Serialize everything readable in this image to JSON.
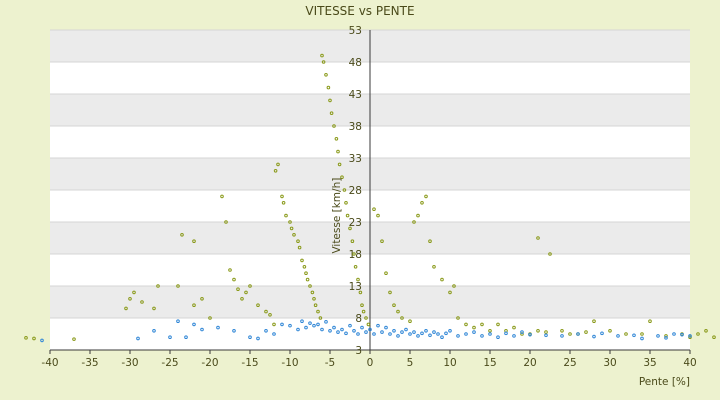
{
  "chart_data": {
    "type": "scatter",
    "title": "VITESSE vs PENTE",
    "xlabel": "Pente [%]",
    "ylabel": "Vitesse [km/h]",
    "xlim": [
      -40,
      40
    ],
    "ylim": [
      3,
      53
    ],
    "x_ticks": [
      "-40",
      "-35",
      "-30",
      "-25",
      "-20",
      "-15",
      "-10",
      "-5",
      "0",
      "5",
      "10",
      "15",
      "20",
      "25",
      "30",
      "35",
      "40"
    ],
    "y_ticks": [
      "3",
      "8",
      "13",
      "18",
      "23",
      "28",
      "33",
      "38",
      "43",
      "48",
      "53"
    ],
    "grid": true,
    "banded_background": true,
    "legend": "none",
    "colors": {
      "series_a": "#8a9a1a",
      "series_b": "#2f86d6",
      "axis": "#3a3a3a",
      "band": "#ebebeb"
    },
    "series": [
      {
        "color": "#8a9a1a",
        "points": [
          [
            -43,
            4.9
          ],
          [
            -42,
            4.8
          ],
          [
            -37,
            4.7
          ],
          [
            -30.5,
            9.5
          ],
          [
            -30,
            11
          ],
          [
            -29.5,
            12
          ],
          [
            -28.5,
            10.5
          ],
          [
            -27,
            9.5
          ],
          [
            -26.5,
            13
          ],
          [
            -24,
            13
          ],
          [
            -23.5,
            21
          ],
          [
            -22,
            20
          ],
          [
            -22,
            10
          ],
          [
            -21,
            11
          ],
          [
            -20,
            8
          ],
          [
            -18.5,
            27
          ],
          [
            -18,
            23
          ],
          [
            -17.5,
            15.5
          ],
          [
            -17,
            14
          ],
          [
            -16.5,
            12.5
          ],
          [
            -16,
            11
          ],
          [
            -15.5,
            12
          ],
          [
            -15,
            13
          ],
          [
            -14,
            10
          ],
          [
            -13,
            9
          ],
          [
            -12.5,
            8.5
          ],
          [
            -12,
            7
          ],
          [
            -11.8,
            31
          ],
          [
            -11.5,
            32
          ],
          [
            -11,
            27
          ],
          [
            -10.8,
            26
          ],
          [
            -10.5,
            24
          ],
          [
            -10,
            23
          ],
          [
            -9.8,
            22
          ],
          [
            -9.5,
            21
          ],
          [
            -9,
            20
          ],
          [
            -8.8,
            19
          ],
          [
            -8.5,
            17
          ],
          [
            -8.2,
            16
          ],
          [
            -8,
            15
          ],
          [
            -7.8,
            14
          ],
          [
            -7.5,
            13
          ],
          [
            -7.2,
            12
          ],
          [
            -7,
            11
          ],
          [
            -6.8,
            10
          ],
          [
            -6.5,
            9
          ],
          [
            -6.2,
            8
          ],
          [
            -6,
            49
          ],
          [
            -5.8,
            48
          ],
          [
            -5.5,
            46
          ],
          [
            -5.2,
            44
          ],
          [
            -5,
            42
          ],
          [
            -4.8,
            40
          ],
          [
            -4.5,
            38
          ],
          [
            -4.2,
            36
          ],
          [
            -4,
            34
          ],
          [
            -3.8,
            32
          ],
          [
            -3.5,
            30
          ],
          [
            -3.2,
            28
          ],
          [
            -3,
            26
          ],
          [
            -2.8,
            24
          ],
          [
            -2.5,
            22
          ],
          [
            -2.2,
            20
          ],
          [
            -2,
            18
          ],
          [
            -1.8,
            16
          ],
          [
            -1.5,
            14
          ],
          [
            -1.2,
            12
          ],
          [
            -1,
            10
          ],
          [
            -0.8,
            9
          ],
          [
            -0.5,
            8
          ],
          [
            -0.2,
            7
          ],
          [
            0.5,
            25
          ],
          [
            1,
            24
          ],
          [
            1.5,
            20
          ],
          [
            2,
            15
          ],
          [
            2.5,
            12
          ],
          [
            3,
            10
          ],
          [
            3.5,
            9
          ],
          [
            4,
            8
          ],
          [
            5,
            7.5
          ],
          [
            5.5,
            23
          ],
          [
            6,
            24
          ],
          [
            6.5,
            26
          ],
          [
            7,
            27
          ],
          [
            7.5,
            20
          ],
          [
            8,
            16
          ],
          [
            9,
            14
          ],
          [
            10,
            12
          ],
          [
            10.5,
            13
          ],
          [
            11,
            8
          ],
          [
            12,
            7
          ],
          [
            13,
            6.5
          ],
          [
            14,
            7
          ],
          [
            15,
            6
          ],
          [
            16,
            7
          ],
          [
            17,
            6
          ],
          [
            18,
            6.5
          ],
          [
            19,
            5.5
          ],
          [
            20,
            5.5
          ],
          [
            21,
            6
          ],
          [
            22,
            5.8
          ],
          [
            22.5,
            18
          ],
          [
            21,
            20.5
          ],
          [
            24,
            6
          ],
          [
            25,
            5.5
          ],
          [
            26,
            5.5
          ],
          [
            27,
            5.8
          ],
          [
            28,
            7.5
          ],
          [
            30,
            6
          ],
          [
            32,
            5.5
          ],
          [
            34,
            5.5
          ],
          [
            35,
            7.5
          ],
          [
            37,
            5.2
          ],
          [
            39,
            5.5
          ],
          [
            40,
            5
          ],
          [
            41,
            5.5
          ],
          [
            42,
            6
          ],
          [
            43,
            5
          ]
        ]
      },
      {
        "color": "#2f86d6",
        "points": [
          [
            -41,
            4.5
          ],
          [
            -29,
            4.8
          ],
          [
            -27,
            6
          ],
          [
            -25,
            5
          ],
          [
            -24,
            7.5
          ],
          [
            -23,
            5
          ],
          [
            -22,
            7
          ],
          [
            -21,
            6.2
          ],
          [
            -19,
            6.5
          ],
          [
            -17,
            6
          ],
          [
            -15,
            5
          ],
          [
            -14,
            4.8
          ],
          [
            -13,
            6
          ],
          [
            -12,
            5.5
          ],
          [
            -11,
            7
          ],
          [
            -10,
            6.8
          ],
          [
            -9,
            6.2
          ],
          [
            -8.5,
            7.5
          ],
          [
            -8,
            6.5
          ],
          [
            -7.5,
            7.2
          ],
          [
            -7,
            6.8
          ],
          [
            -6.5,
            7
          ],
          [
            -6,
            6.2
          ],
          [
            -5.5,
            7.4
          ],
          [
            -5,
            6
          ],
          [
            -4.5,
            6.5
          ],
          [
            -4,
            5.8
          ],
          [
            -3.5,
            6.2
          ],
          [
            -3,
            5.6
          ],
          [
            -2.5,
            6.8
          ],
          [
            -2,
            6
          ],
          [
            -1.5,
            5.5
          ],
          [
            -1,
            6.5
          ],
          [
            -0.5,
            5.8
          ],
          [
            0,
            6.2
          ],
          [
            0.5,
            5.5
          ],
          [
            1,
            6.8
          ],
          [
            1.5,
            5.8
          ],
          [
            2,
            6.5
          ],
          [
            2.5,
            5.5
          ],
          [
            3,
            6
          ],
          [
            3.5,
            5.2
          ],
          [
            4,
            5.8
          ],
          [
            4.5,
            6.2
          ],
          [
            5,
            5.5
          ],
          [
            5.5,
            5.8
          ],
          [
            6,
            5.2
          ],
          [
            6.5,
            5.6
          ],
          [
            7,
            6
          ],
          [
            7.5,
            5.3
          ],
          [
            8,
            5.8
          ],
          [
            8.5,
            5.5
          ],
          [
            9,
            5
          ],
          [
            9.5,
            5.6
          ],
          [
            10,
            6
          ],
          [
            11,
            5.2
          ],
          [
            12,
            5.5
          ],
          [
            13,
            5.8
          ],
          [
            14,
            5.2
          ],
          [
            15,
            5.5
          ],
          [
            16,
            5
          ],
          [
            17,
            5.6
          ],
          [
            18,
            5.2
          ],
          [
            19,
            5.8
          ],
          [
            20,
            5.4
          ],
          [
            22,
            5.3
          ],
          [
            24,
            5.2
          ],
          [
            26,
            5.5
          ],
          [
            28,
            5.1
          ],
          [
            29,
            5.6
          ],
          [
            31,
            5.2
          ],
          [
            33,
            5.3
          ],
          [
            34,
            4.8
          ],
          [
            36,
            5.2
          ],
          [
            37,
            4.9
          ],
          [
            38,
            5.5
          ],
          [
            39,
            5.4
          ],
          [
            40,
            5.2
          ]
        ]
      }
    ]
  }
}
